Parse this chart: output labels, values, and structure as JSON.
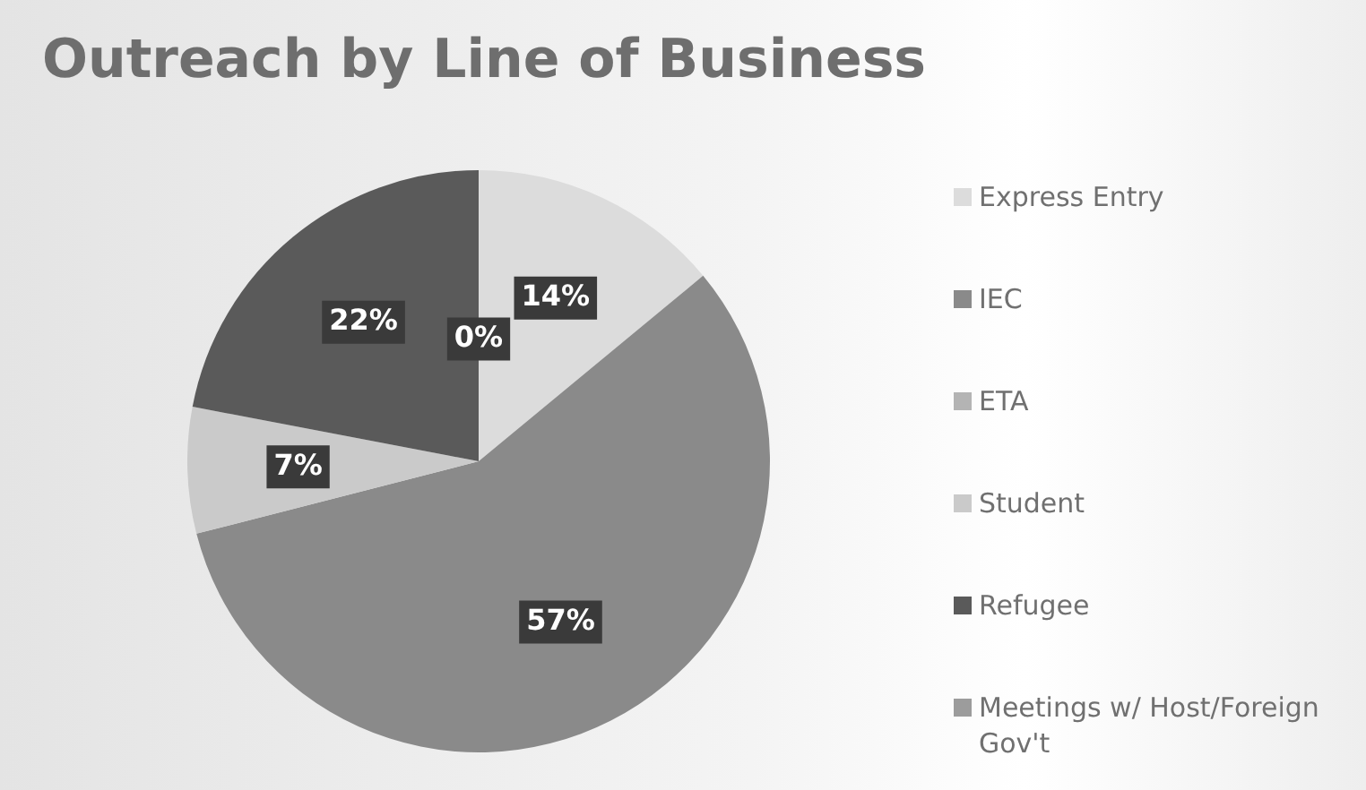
{
  "chart_data": {
    "type": "pie",
    "title": "Outreach by Line of Business",
    "categories": [
      "Express Entry",
      "IEC",
      "ETA",
      "Student",
      "Refugee",
      "Meetings w/ Host/Foreign Gov't"
    ],
    "values": [
      14,
      57,
      0,
      7,
      22,
      0
    ],
    "value_labels": [
      "14%",
      "57%",
      null,
      "7%",
      "22%",
      "0%"
    ],
    "colors": [
      "#dcdcdc",
      "#8a8a8a",
      "#b4b4b4",
      "#cacaca",
      "#5a5a5a",
      "#9c9c9c"
    ],
    "legend": "right"
  }
}
